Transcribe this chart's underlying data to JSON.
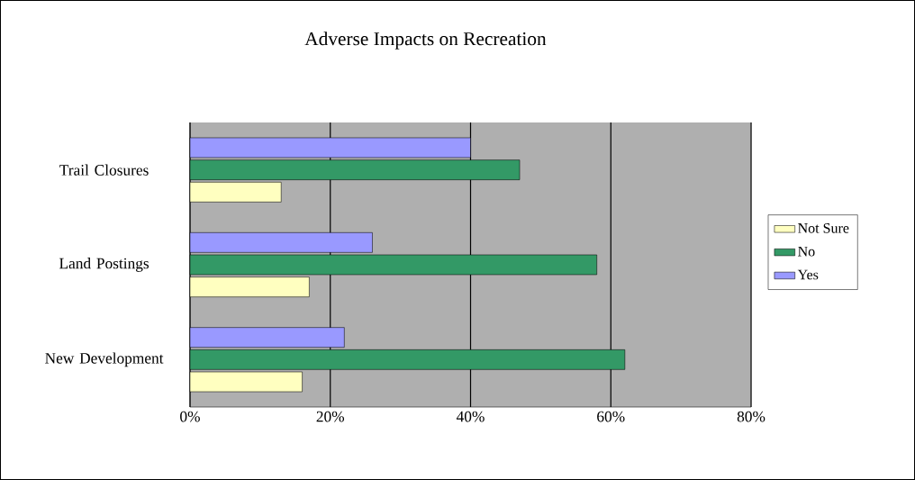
{
  "chart_data": {
    "type": "bar",
    "orientation": "horizontal",
    "title": "Adverse Impacts on Recreation",
    "categories": [
      "Trail Closures",
      "Land Postings",
      "New Development"
    ],
    "series": [
      {
        "name": "Not Sure",
        "color": "#ffffc0",
        "values": [
          13,
          17,
          16
        ]
      },
      {
        "name": "No",
        "color": "#339966",
        "values": [
          47,
          58,
          62
        ]
      },
      {
        "name": "Yes",
        "color": "#9999ff",
        "values": [
          40,
          26,
          22
        ]
      }
    ],
    "xlim": [
      0,
      80
    ],
    "xticks": [
      {
        "value": 0,
        "label": "0%"
      },
      {
        "value": 20,
        "label": "20%"
      },
      {
        "value": 40,
        "label": "40%"
      },
      {
        "value": 60,
        "label": "60%"
      },
      {
        "value": 80,
        "label": "80%"
      }
    ],
    "grid": "x",
    "legend": "right"
  }
}
